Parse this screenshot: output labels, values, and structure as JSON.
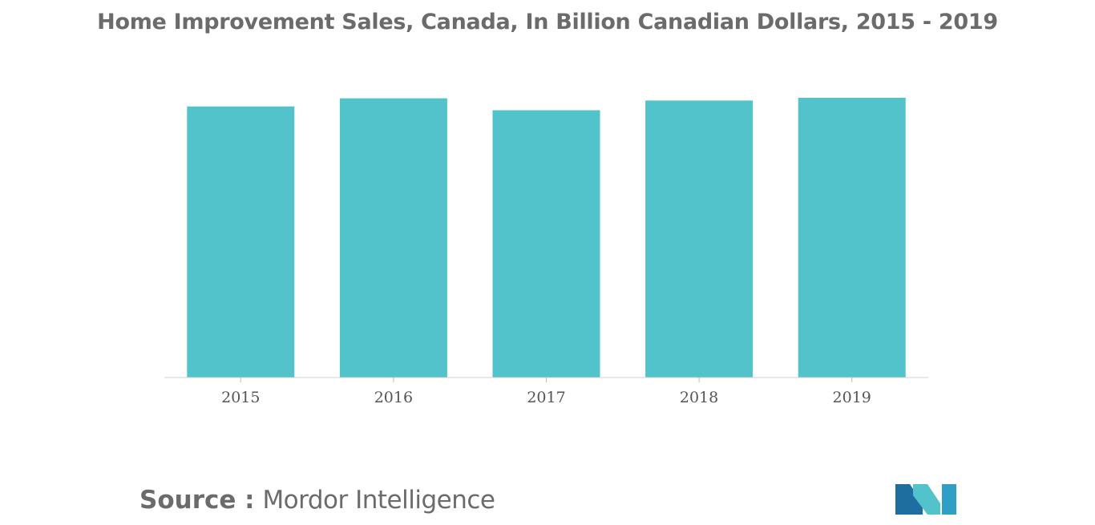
{
  "chart_data": {
    "type": "bar",
    "title": "Home Improvement Sales, Canada, In Billion Canadian Dollars, 2015 - 2019",
    "categories": [
      "2015",
      "2016",
      "2017",
      "2018",
      "2019"
    ],
    "values": [
      50.0,
      51.5,
      49.3,
      51.1,
      51.6
    ],
    "xlabel": "",
    "ylabel": "",
    "ylim": [
      0,
      55
    ],
    "grid": false,
    "legend": "none",
    "bar_color": "#52c3ca"
  },
  "source": {
    "prefix": "Source :",
    "name": "Mordor Intelligence"
  },
  "logo": {
    "icon": "mordor-intelligence-logo-icon",
    "colors": [
      "#1e6fa0",
      "#52c3ca",
      "#2f9fc8"
    ]
  }
}
